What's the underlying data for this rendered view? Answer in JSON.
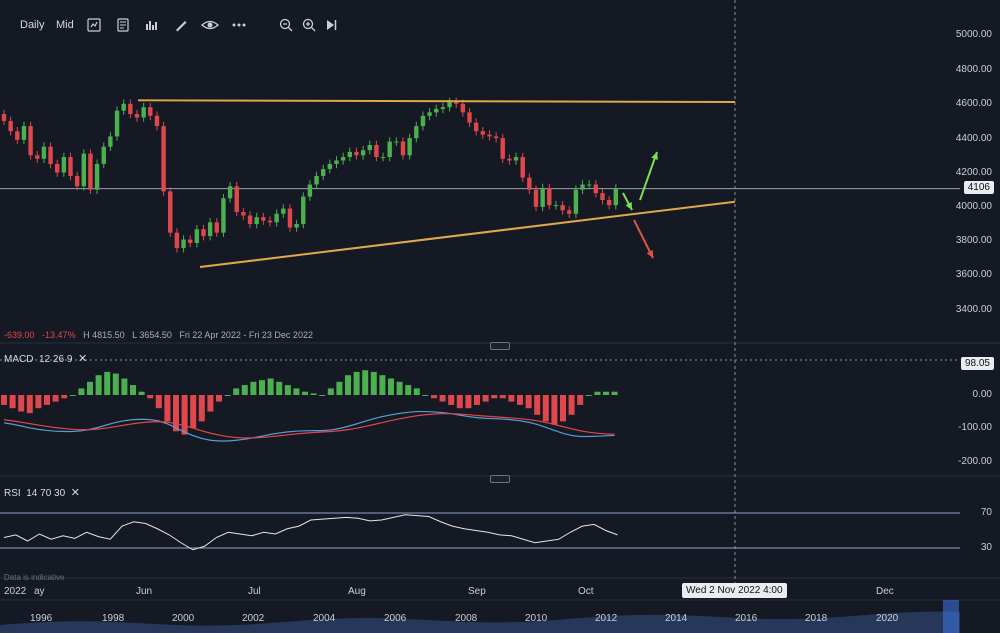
{
  "toolbar": {
    "interval_label": "Daily",
    "price_type_label": "Mid",
    "icons": [
      "indicators-icon",
      "templates-icon",
      "chart-type-icon",
      "draw-icon",
      "visibility-icon",
      "more-icon",
      "zoom-out-icon",
      "zoom-in-icon",
      "scroll-to-end-icon"
    ]
  },
  "price_axis": {
    "labels": [
      "5000.00",
      "4800.00",
      "4600.00",
      "4400.00",
      "4200.00",
      "4000.00",
      "3800.00",
      "3600.00",
      "3400.00"
    ],
    "current_price": "4106"
  },
  "stats": {
    "change": "-639.00",
    "change_pct": "-13.47%",
    "high": "H 4815.50",
    "low": "L 3654.50",
    "range": "Fri 22 Apr 2022 - Fri 23 Dec 2022"
  },
  "macd": {
    "label": "MACD",
    "params": "12  26  9",
    "close_icon": "close-icon",
    "axis_labels": [
      "0.00",
      "-100.00",
      "-200.00"
    ],
    "badge": "98.05"
  },
  "rsi": {
    "label": "RSI",
    "params": "14  70  30",
    "close_icon": "close-icon",
    "axis_labels": [
      "70",
      "30"
    ]
  },
  "disclaimer": "Data is indicative",
  "x_axis": {
    "year": "2022",
    "months": [
      "ay",
      "Jun",
      "Jul",
      "Aug",
      "Sep",
      "Oct",
      "Dec"
    ],
    "crosshair_date": "Wed 2 Nov 2022 4:00"
  },
  "navigator": {
    "years": [
      "1996",
      "1998",
      "2000",
      "2002",
      "2004",
      "2006",
      "2008",
      "2010",
      "2012",
      "2014",
      "2016",
      "2018",
      "2020"
    ]
  },
  "colors": {
    "background": "#141923",
    "up": "#4caf50",
    "down": "#e0474c",
    "trendline": "#e0a84a",
    "macd_line": "#5b9bd5",
    "signal_line": "#e0474c",
    "rsi_line": "#e6e6e6",
    "arrow_up": "#7be04f",
    "arrow_down": "#e0533c"
  },
  "chart_data": {
    "type": "candlestick",
    "instrument_timeframe": "Daily",
    "close_series": [
      4500,
      4440,
      4390,
      4470,
      4300,
      4280,
      4350,
      4250,
      4200,
      4290,
      4180,
      4120,
      4310,
      4100,
      4250,
      4350,
      4410,
      4560,
      4600,
      4540,
      4520,
      4580,
      4530,
      4470,
      4090,
      3850,
      3760,
      3810,
      3790,
      3870,
      3830,
      3910,
      3850,
      4050,
      4120,
      3970,
      3950,
      3900,
      3940,
      3920,
      3910,
      3960,
      3990,
      3880,
      3900,
      4060,
      4130,
      4180,
      4220,
      4250,
      4270,
      4290,
      4320,
      4300,
      4330,
      4360,
      4290,
      4290,
      4380,
      4380,
      4300,
      4400,
      4470,
      4530,
      4550,
      4570,
      4580,
      4610,
      4600,
      4550,
      4490,
      4440,
      4420,
      4410,
      4400,
      4280,
      4270,
      4290,
      4170,
      4100,
      4000,
      4110,
      4010,
      4010,
      3980,
      3960,
      4100,
      4130,
      4130,
      4080,
      4040,
      4010,
      4106
    ],
    "pattern": "symmetrical triangle",
    "upper_trendline": {
      "start": 4620,
      "end": 4610
    },
    "lower_trendline": {
      "start": 3650,
      "end": 4030
    },
    "annotations": [
      "breakout up arrow",
      "breakdown down arrow",
      "bounce arrow to support"
    ],
    "macd_hist": [
      -30,
      -40,
      -50,
      -55,
      -40,
      -30,
      -20,
      -10,
      0,
      20,
      40,
      60,
      70,
      65,
      50,
      30,
      10,
      -10,
      -40,
      -80,
      -110,
      -120,
      -100,
      -80,
      -50,
      -20,
      0,
      20,
      30,
      40,
      45,
      50,
      40,
      30,
      20,
      10,
      5,
      0,
      20,
      40,
      60,
      70,
      75,
      70,
      60,
      50,
      40,
      30,
      20,
      0,
      -10,
      -20,
      -30,
      -40,
      -40,
      -30,
      -20,
      -10,
      -10,
      -20,
      -30,
      -40,
      -60,
      -80,
      -90,
      -80,
      -60,
      -30,
      0,
      10,
      10,
      10
    ],
    "rsi": [
      42,
      45,
      38,
      46,
      40,
      44,
      41,
      48,
      43,
      40,
      55,
      60,
      58,
      52,
      45,
      36,
      28,
      32,
      42,
      48,
      46,
      44,
      48,
      46,
      52,
      55,
      62,
      63,
      64,
      65,
      64,
      61,
      62,
      65,
      68,
      67,
      66,
      60,
      55,
      52,
      50,
      48,
      45,
      44,
      40,
      36,
      38,
      40,
      48,
      55,
      57,
      50,
      45
    ]
  }
}
